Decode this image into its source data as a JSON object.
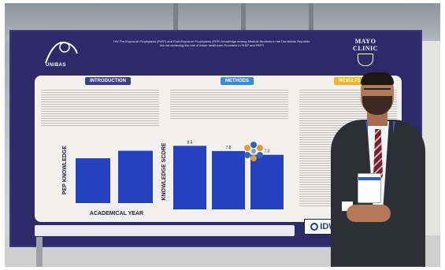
{
  "poster": {
    "left_logo_text": "UNIBAS",
    "right_logo_line1": "MAYO",
    "right_logo_line2": "CLINIC",
    "title": "HIV Pre-Exposure Prophylaxis (PrEP) and Post-Exposure Prophylaxis (PEP) knowledge among Medical Students in the Dominican Republic: Are we achieving the role of future healthcare Providers in PrEP and PEP?",
    "sections": [
      "INTRODUCTION",
      "METHODS",
      "RESULTS"
    ],
    "footer_logo": "IDW"
  },
  "chart_data": [
    {
      "type": "bar",
      "ylabel": "PEP KNOWLEDGE",
      "xlabel": "ACADEMICAL YEAR",
      "categories": [
        "",
        ""
      ],
      "values": [
        6,
        7
      ]
    },
    {
      "type": "bar",
      "ylabel": "KNOWLEDGE SCORE",
      "xlabel": "",
      "categories": [
        "",
        "",
        ""
      ],
      "values": [
        8.5,
        7.8,
        7.3
      ],
      "data_labels": [
        "8.5",
        "7.8",
        "7.3"
      ]
    }
  ],
  "colors": {
    "board": "#2d2a6a",
    "bar": "#2541c2",
    "intro": "#3d3d8c",
    "methods": "#3b8ad6",
    "results": "#f1b72a"
  }
}
